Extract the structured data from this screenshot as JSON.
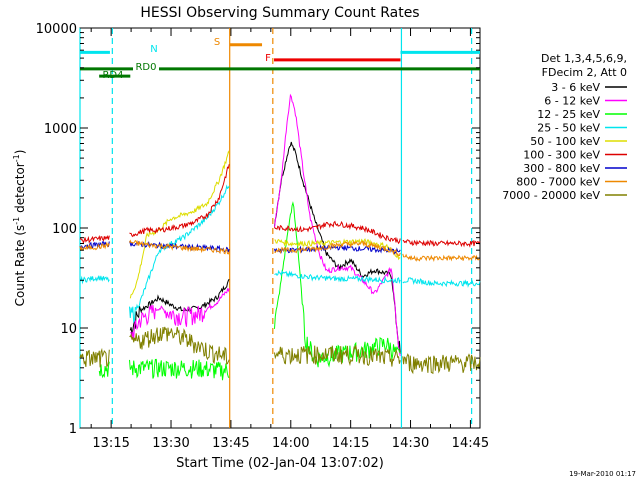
{
  "chart_data": {
    "type": "line",
    "title": "HESSI Observing Summary Count Rates",
    "xlabel": "Start Time (02-Jan-04 13:07:02)",
    "ylabel": "Count Rate (s⁻¹ detector⁻¹)",
    "ylabel_parts": {
      "main": "Count Rate (s",
      "sup1": "-1",
      "mid": " detector",
      "sup2": "-1",
      "end": ")"
    },
    "scale": {
      "y": "log"
    },
    "xlim": [
      13.12,
      14.79
    ],
    "ylim": [
      1,
      10000
    ],
    "x_ticks": [
      {
        "v": 13.25,
        "label": "13:15"
      },
      {
        "v": 13.5,
        "label": "13:30"
      },
      {
        "v": 13.75,
        "label": "13:45"
      },
      {
        "v": 14.0,
        "label": "14:00"
      },
      {
        "v": 14.25,
        "label": "14:15"
      },
      {
        "v": 14.5,
        "label": "14:30"
      },
      {
        "v": 14.75,
        "label": "14:45"
      }
    ],
    "y_ticks": [
      {
        "v": 1,
        "label": "1"
      },
      {
        "v": 10,
        "label": "10"
      },
      {
        "v": 100,
        "label": "100"
      },
      {
        "v": 1000,
        "label": "1000"
      },
      {
        "v": 10000,
        "label": "10000"
      }
    ],
    "legend": {
      "placement": "right",
      "header": [
        "Det 1,3,4,5,6,9,",
        "FDecim 2, Att 0"
      ]
    },
    "gaps": [
      [
        13.245,
        13.325
      ],
      [
        13.745,
        13.93
      ],
      [
        14.458,
        14.466
      ]
    ],
    "series": [
      {
        "name": "3 - 6 keV",
        "color": "#000000",
        "x": [
          13.12,
          13.2,
          13.245,
          13.33,
          13.37,
          13.45,
          13.5,
          13.55,
          13.62,
          13.69,
          13.745,
          13.93,
          13.96,
          13.99,
          14.0,
          14.02,
          14.05,
          14.1,
          14.15,
          14.2,
          14.25,
          14.3,
          14.35,
          14.42,
          14.458
        ],
        "y": [
          0,
          0,
          0,
          9.5,
          15,
          20,
          17,
          15,
          16,
          20,
          30,
          100,
          300,
          600,
          720,
          560,
          300,
          120,
          55,
          40,
          48,
          33,
          38,
          34,
          5
        ]
      },
      {
        "name": "6 - 12 keV",
        "color": "#ff00ff",
        "x": [
          13.12,
          13.2,
          13.245,
          13.33,
          13.37,
          13.45,
          13.5,
          13.55,
          13.62,
          13.69,
          13.745,
          13.93,
          13.96,
          13.985,
          14.0,
          14.02,
          14.05,
          14.08,
          14.12,
          14.15,
          14.2,
          14.25,
          14.3,
          14.35,
          14.42,
          14.458
        ],
        "y": [
          0,
          0,
          0,
          8,
          12,
          16,
          14,
          13,
          14,
          18,
          25,
          95,
          300,
          1200,
          2200,
          1400,
          400,
          130,
          55,
          37,
          40,
          40,
          30,
          22,
          40,
          5
        ]
      },
      {
        "name": "12 - 25 keV",
        "color": "#00ff00",
        "x": [
          13.12,
          13.2,
          13.245,
          13.33,
          13.37,
          13.45,
          13.5,
          13.55,
          13.62,
          13.69,
          13.745,
          13.93,
          13.96,
          13.99,
          14.01,
          14.03,
          14.06,
          14.1,
          14.2,
          14.3,
          14.4,
          14.458
        ],
        "y": [
          0,
          4,
          4,
          4,
          4,
          4,
          4,
          4,
          4,
          3.8,
          3.8,
          10,
          30,
          100,
          185,
          60,
          8,
          5,
          5.5,
          6,
          7,
          5
        ]
      },
      {
        "name": "25 - 50 keV",
        "color": "#00e5ee",
        "x": [
          13.12,
          13.2,
          13.245,
          13.33,
          13.37,
          13.45,
          13.5,
          13.55,
          13.6,
          13.65,
          13.7,
          13.745,
          13.93,
          14.0,
          14.1,
          14.2,
          14.3,
          14.4,
          14.458,
          14.5,
          14.6,
          14.7,
          14.79
        ],
        "y": [
          30,
          32,
          30,
          13,
          18,
          60,
          70,
          80,
          100,
          125,
          180,
          280,
          36,
          34,
          32,
          31,
          31,
          30,
          30,
          30,
          28,
          28,
          28
        ]
      },
      {
        "name": "50 - 100 keV",
        "color": "#dddd00",
        "x": [
          13.12,
          13.2,
          13.245,
          13.33,
          13.36,
          13.4,
          13.45,
          13.5,
          13.55,
          13.6,
          13.65,
          13.7,
          13.745,
          13.93,
          14.0,
          14.1,
          14.2,
          14.3,
          14.4,
          14.458
        ],
        "y": [
          0,
          0,
          0,
          20,
          30,
          85,
          95,
          125,
          135,
          150,
          175,
          300,
          600,
          75,
          70,
          70,
          72,
          74,
          66,
          50
        ]
      },
      {
        "name": "100 - 300 keV",
        "color": "#dd0000",
        "x": [
          13.12,
          13.2,
          13.245,
          13.33,
          13.4,
          13.45,
          13.5,
          13.55,
          13.6,
          13.65,
          13.7,
          13.745,
          13.93,
          14.0,
          14.05,
          14.1,
          14.15,
          14.2,
          14.25,
          14.3,
          14.35,
          14.4,
          14.458,
          14.5,
          14.6,
          14.7,
          14.79
        ],
        "y": [
          75,
          78,
          80,
          85,
          95,
          95,
          100,
          105,
          115,
          135,
          200,
          450,
          100,
          100,
          96,
          100,
          110,
          110,
          105,
          100,
          90,
          80,
          74,
          72,
          70,
          70,
          70
        ]
      },
      {
        "name": "300 - 800 keV",
        "color": "#0000cc",
        "x": [
          13.12,
          13.2,
          13.245,
          13.33,
          13.4,
          13.5,
          13.6,
          13.7,
          13.745,
          13.93,
          14.0,
          14.1,
          14.2,
          14.3,
          14.4,
          14.458
        ],
        "y": [
          66,
          68,
          70,
          70,
          68,
          66,
          64,
          62,
          60,
          60,
          60,
          62,
          64,
          62,
          60,
          58
        ]
      },
      {
        "name": "800 - 7000 keV",
        "color": "#ee8800",
        "x": [
          13.12,
          13.2,
          13.245,
          13.33,
          13.4,
          13.5,
          13.6,
          13.7,
          13.745,
          13.93,
          14.0,
          14.1,
          14.2,
          14.3,
          14.4,
          14.458,
          14.5,
          14.6,
          14.7,
          14.79
        ],
        "y": [
          62,
          65,
          68,
          72,
          68,
          65,
          62,
          60,
          58,
          60,
          60,
          62,
          68,
          70,
          62,
          55,
          50,
          50,
          50,
          50
        ]
      },
      {
        "name": "7000 - 20000 keV",
        "color": "#808000",
        "x": [
          13.12,
          13.2,
          13.245,
          13.33,
          13.4,
          13.45,
          13.5,
          13.55,
          13.6,
          13.65,
          13.7,
          13.745,
          13.93,
          14.0,
          14.1,
          14.2,
          14.3,
          14.4,
          14.458,
          14.5,
          14.6,
          14.7,
          14.79
        ],
        "y": [
          5,
          5,
          5,
          7,
          8,
          9,
          9,
          8,
          7,
          6,
          5.5,
          5,
          5.5,
          5.5,
          5.5,
          5.5,
          5.5,
          5,
          5,
          4.5,
          4.5,
          4.5,
          4.5
        ]
      }
    ],
    "bars": [
      {
        "label": "N",
        "color": "#00e5ee",
        "x": [
          13.12,
          13.245
        ],
        "y": 5700
      },
      {
        "label": "",
        "color": "#00e5ee",
        "x": [
          14.458,
          14.79
        ],
        "y": 5700
      },
      {
        "label": "S",
        "color": "#ee8800",
        "x": [
          13.745,
          13.88
        ],
        "y": 6800
      },
      {
        "label": "F",
        "color": "#ee0000",
        "x": [
          13.93,
          14.458
        ],
        "y": 4800
      },
      {
        "label": "RD0",
        "color": "#007700",
        "x": [
          13.12,
          14.79
        ],
        "y": 3900
      },
      {
        "label": "RD4",
        "color": "#007700",
        "x": [
          13.2,
          13.33
        ],
        "y": 3300
      }
    ],
    "vlines": [
      {
        "x": 13.12,
        "color": "#00e5ee",
        "dash": false
      },
      {
        "x": 13.255,
        "color": "#00e5ee",
        "dash": true
      },
      {
        "x": 13.745,
        "color": "#ee8800",
        "dash": false
      },
      {
        "x": 13.925,
        "color": "#ee8800",
        "dash": true
      },
      {
        "x": 14.462,
        "color": "#00e5ee",
        "dash": false
      },
      {
        "x": 14.755,
        "color": "#00e5ee",
        "dash": true
      }
    ]
  },
  "footer": {
    "timestamp": "19-Mar-2010 01:17"
  }
}
